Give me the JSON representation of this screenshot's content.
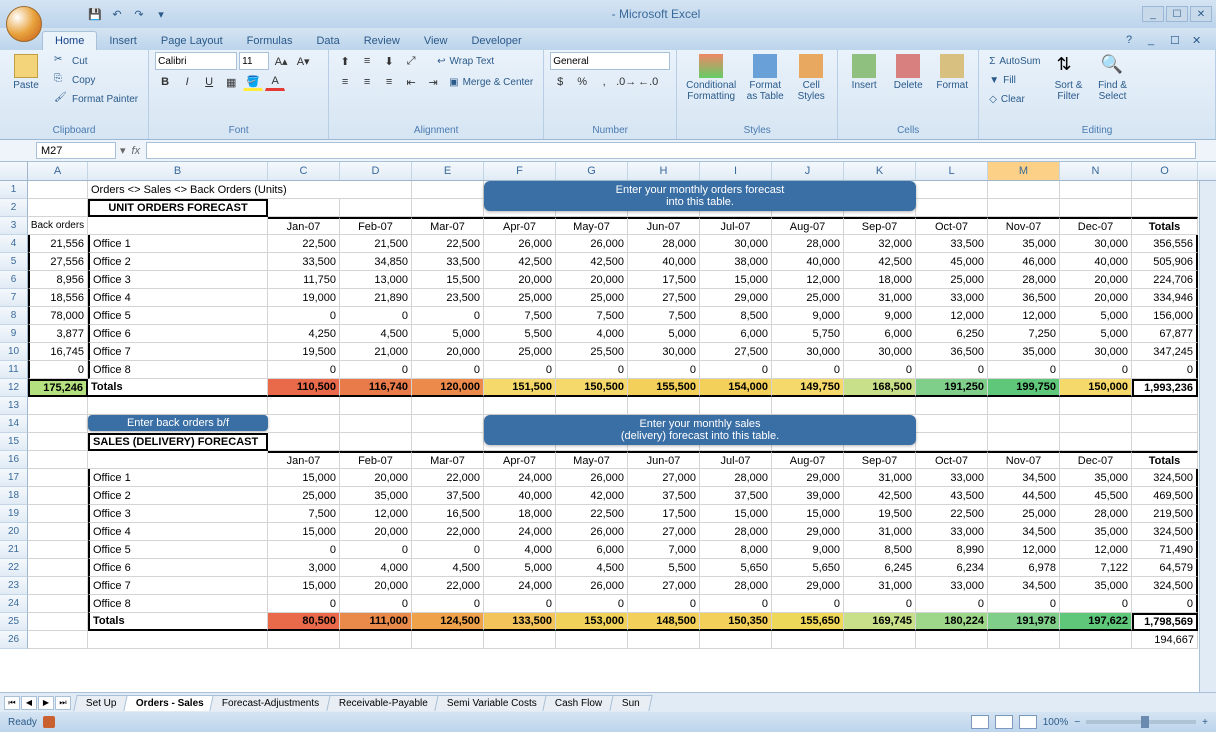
{
  "app": {
    "title": "- Microsoft Excel"
  },
  "ribbon": {
    "tabs": [
      "Home",
      "Insert",
      "Page Layout",
      "Formulas",
      "Data",
      "Review",
      "View",
      "Developer"
    ],
    "active_tab": 0,
    "clipboard": {
      "paste": "Paste",
      "cut": "Cut",
      "copy": "Copy",
      "format_painter": "Format Painter",
      "label": "Clipboard"
    },
    "font": {
      "name": "Calibri",
      "size": "11",
      "label": "Font"
    },
    "alignment": {
      "wrap": "Wrap Text",
      "merge": "Merge & Center",
      "label": "Alignment"
    },
    "number": {
      "format": "General",
      "label": "Number"
    },
    "styles": {
      "cond": "Conditional Formatting",
      "table": "Format as Table",
      "cell": "Cell Styles",
      "label": "Styles"
    },
    "cells": {
      "insert": "Insert",
      "delete": "Delete",
      "format": "Format",
      "label": "Cells"
    },
    "editing": {
      "autosum": "AutoSum",
      "fill": "Fill",
      "clear": "Clear",
      "sort": "Sort & Filter",
      "find": "Find & Select",
      "label": "Editing"
    }
  },
  "namebox": "M27",
  "columns": {
    "widths": {
      "A": 60,
      "B": 180,
      "C": 72,
      "D": 72,
      "E": 72,
      "F": 72,
      "G": 72,
      "H": 72,
      "I": 72,
      "J": 72,
      "K": 72,
      "L": 72,
      "M": 72,
      "N": 72,
      "O": 66
    },
    "letters": [
      "A",
      "B",
      "C",
      "D",
      "E",
      "F",
      "G",
      "H",
      "I",
      "J",
      "K",
      "L",
      "M",
      "N",
      "O"
    ],
    "selected": "M"
  },
  "sheet": {
    "title_row": "Orders <> Sales <> Back Orders (Units)",
    "section1_title": "UNIT ORDERS FORECAST",
    "callout1_l1": "Enter your monthly orders forecast",
    "callout1_l2": "into this table.",
    "back_orders_label": "Back orders",
    "months": [
      "Jan-07",
      "Feb-07",
      "Mar-07",
      "Apr-07",
      "May-07",
      "Jun-07",
      "Jul-07",
      "Aug-07",
      "Sep-07",
      "Oct-07",
      "Nov-07",
      "Dec-07"
    ],
    "totals_label": "Totals",
    "orders": {
      "back": [
        "21,556",
        "27,556",
        "8,956",
        "18,556",
        "78,000",
        "3,877",
        "16,745",
        "0"
      ],
      "rows": [
        {
          "name": "Office 1",
          "vals": [
            "22,500",
            "21,500",
            "22,500",
            "26,000",
            "26,000",
            "28,000",
            "30,000",
            "28,000",
            "32,000",
            "33,500",
            "35,000",
            "30,000"
          ],
          "total": "356,556"
        },
        {
          "name": "Office 2",
          "vals": [
            "33,500",
            "34,850",
            "33,500",
            "42,500",
            "42,500",
            "40,000",
            "38,000",
            "40,000",
            "42,500",
            "45,000",
            "46,000",
            "40,000"
          ],
          "total": "505,906"
        },
        {
          "name": "Office 3",
          "vals": [
            "11,750",
            "13,000",
            "15,500",
            "20,000",
            "20,000",
            "17,500",
            "15,000",
            "12,000",
            "18,000",
            "25,000",
            "28,000",
            "20,000"
          ],
          "total": "224,706"
        },
        {
          "name": "Office 4",
          "vals": [
            "19,000",
            "21,890",
            "23,500",
            "25,000",
            "25,000",
            "27,500",
            "29,000",
            "25,000",
            "31,000",
            "33,000",
            "36,500",
            "20,000"
          ],
          "total": "334,946"
        },
        {
          "name": "Office 5",
          "vals": [
            "0",
            "0",
            "0",
            "7,500",
            "7,500",
            "7,500",
            "8,500",
            "9,000",
            "9,000",
            "12,000",
            "12,000",
            "5,000"
          ],
          "total": "156,000"
        },
        {
          "name": "Office 6",
          "vals": [
            "4,250",
            "4,500",
            "5,000",
            "5,500",
            "4,000",
            "5,000",
            "6,000",
            "5,750",
            "6,000",
            "6,250",
            "7,250",
            "5,000"
          ],
          "total": "67,877"
        },
        {
          "name": "Office 7",
          "vals": [
            "19,500",
            "21,000",
            "20,000",
            "25,000",
            "25,500",
            "30,000",
            "27,500",
            "30,000",
            "30,000",
            "36,500",
            "35,000",
            "30,000"
          ],
          "total": "347,245"
        },
        {
          "name": "Office 8",
          "vals": [
            "0",
            "0",
            "0",
            "0",
            "0",
            "0",
            "0",
            "0",
            "0",
            "0",
            "0",
            "0"
          ],
          "total": "0"
        }
      ],
      "totals_back": "175,246",
      "totals": [
        "110,500",
        "116,740",
        "120,000",
        "151,500",
        "150,500",
        "155,500",
        "154,000",
        "149,750",
        "168,500",
        "191,250",
        "199,750",
        "150,000"
      ],
      "grand_total": "1,993,236",
      "totals_colors": [
        "#e86a4a",
        "#e97a4a",
        "#eb8a4a",
        "#f5d96a",
        "#f5d96a",
        "#f2d05a",
        "#f2d05a",
        "#f5d96a",
        "#c8e08a",
        "#7fcf8a",
        "#5fc77a",
        "#f5d96a"
      ]
    },
    "callout_back": "Enter back orders b/f",
    "callout2_l1": "Enter your monthly sales",
    "callout2_l2": "(delivery) forecast into this table.",
    "section2_title": "SALES (DELIVERY) FORECAST",
    "sales": {
      "rows": [
        {
          "name": "Office 1",
          "vals": [
            "15,000",
            "20,000",
            "22,000",
            "24,000",
            "26,000",
            "27,000",
            "28,000",
            "29,000",
            "31,000",
            "33,000",
            "34,500",
            "35,000"
          ],
          "total": "324,500"
        },
        {
          "name": "Office 2",
          "vals": [
            "25,000",
            "35,000",
            "37,500",
            "40,000",
            "42,000",
            "37,500",
            "37,500",
            "39,000",
            "42,500",
            "43,500",
            "44,500",
            "45,500"
          ],
          "total": "469,500"
        },
        {
          "name": "Office 3",
          "vals": [
            "7,500",
            "12,000",
            "16,500",
            "18,000",
            "22,500",
            "17,500",
            "15,000",
            "15,000",
            "19,500",
            "22,500",
            "25,000",
            "28,000"
          ],
          "total": "219,500"
        },
        {
          "name": "Office 4",
          "vals": [
            "15,000",
            "20,000",
            "22,000",
            "24,000",
            "26,000",
            "27,000",
            "28,000",
            "29,000",
            "31,000",
            "33,000",
            "34,500",
            "35,000"
          ],
          "total": "324,500"
        },
        {
          "name": "Office 5",
          "vals": [
            "0",
            "0",
            "0",
            "4,000",
            "6,000",
            "7,000",
            "8,000",
            "9,000",
            "8,500",
            "8,990",
            "12,000",
            "12,000"
          ],
          "total": "71,490"
        },
        {
          "name": "Office 6",
          "vals": [
            "3,000",
            "4,000",
            "4,500",
            "5,000",
            "4,500",
            "5,500",
            "5,650",
            "5,650",
            "6,245",
            "6,234",
            "6,978",
            "7,122"
          ],
          "total": "64,579"
        },
        {
          "name": "Office 7",
          "vals": [
            "15,000",
            "20,000",
            "22,000",
            "24,000",
            "26,000",
            "27,000",
            "28,000",
            "29,000",
            "31,000",
            "33,000",
            "34,500",
            "35,000"
          ],
          "total": "324,500"
        },
        {
          "name": "Office 8",
          "vals": [
            "0",
            "0",
            "0",
            "0",
            "0",
            "0",
            "0",
            "0",
            "0",
            "0",
            "0",
            "0"
          ],
          "total": "0"
        }
      ],
      "totals": [
        "80,500",
        "111,000",
        "124,500",
        "133,500",
        "153,000",
        "148,500",
        "150,350",
        "155,650",
        "169,745",
        "180,224",
        "191,978",
        "197,622"
      ],
      "grand_total": "1,798,569",
      "totals_colors": [
        "#e86a4a",
        "#ea8a4a",
        "#eea24a",
        "#f2c45a",
        "#f0d25a",
        "#f2d05a",
        "#f2d05a",
        "#eed85a",
        "#c8e08a",
        "#9fd78a",
        "#7fcf8a",
        "#5fc77a"
      ],
      "extra_total": "194,667"
    }
  },
  "sheet_tabs": {
    "items": [
      "Set Up",
      "Orders - Sales",
      "Forecast-Adjustments",
      "Receivable-Payable",
      "Semi Variable Costs",
      "Cash Flow",
      "Sun"
    ],
    "active": 1
  },
  "status": {
    "ready": "Ready",
    "zoom": "100%"
  }
}
